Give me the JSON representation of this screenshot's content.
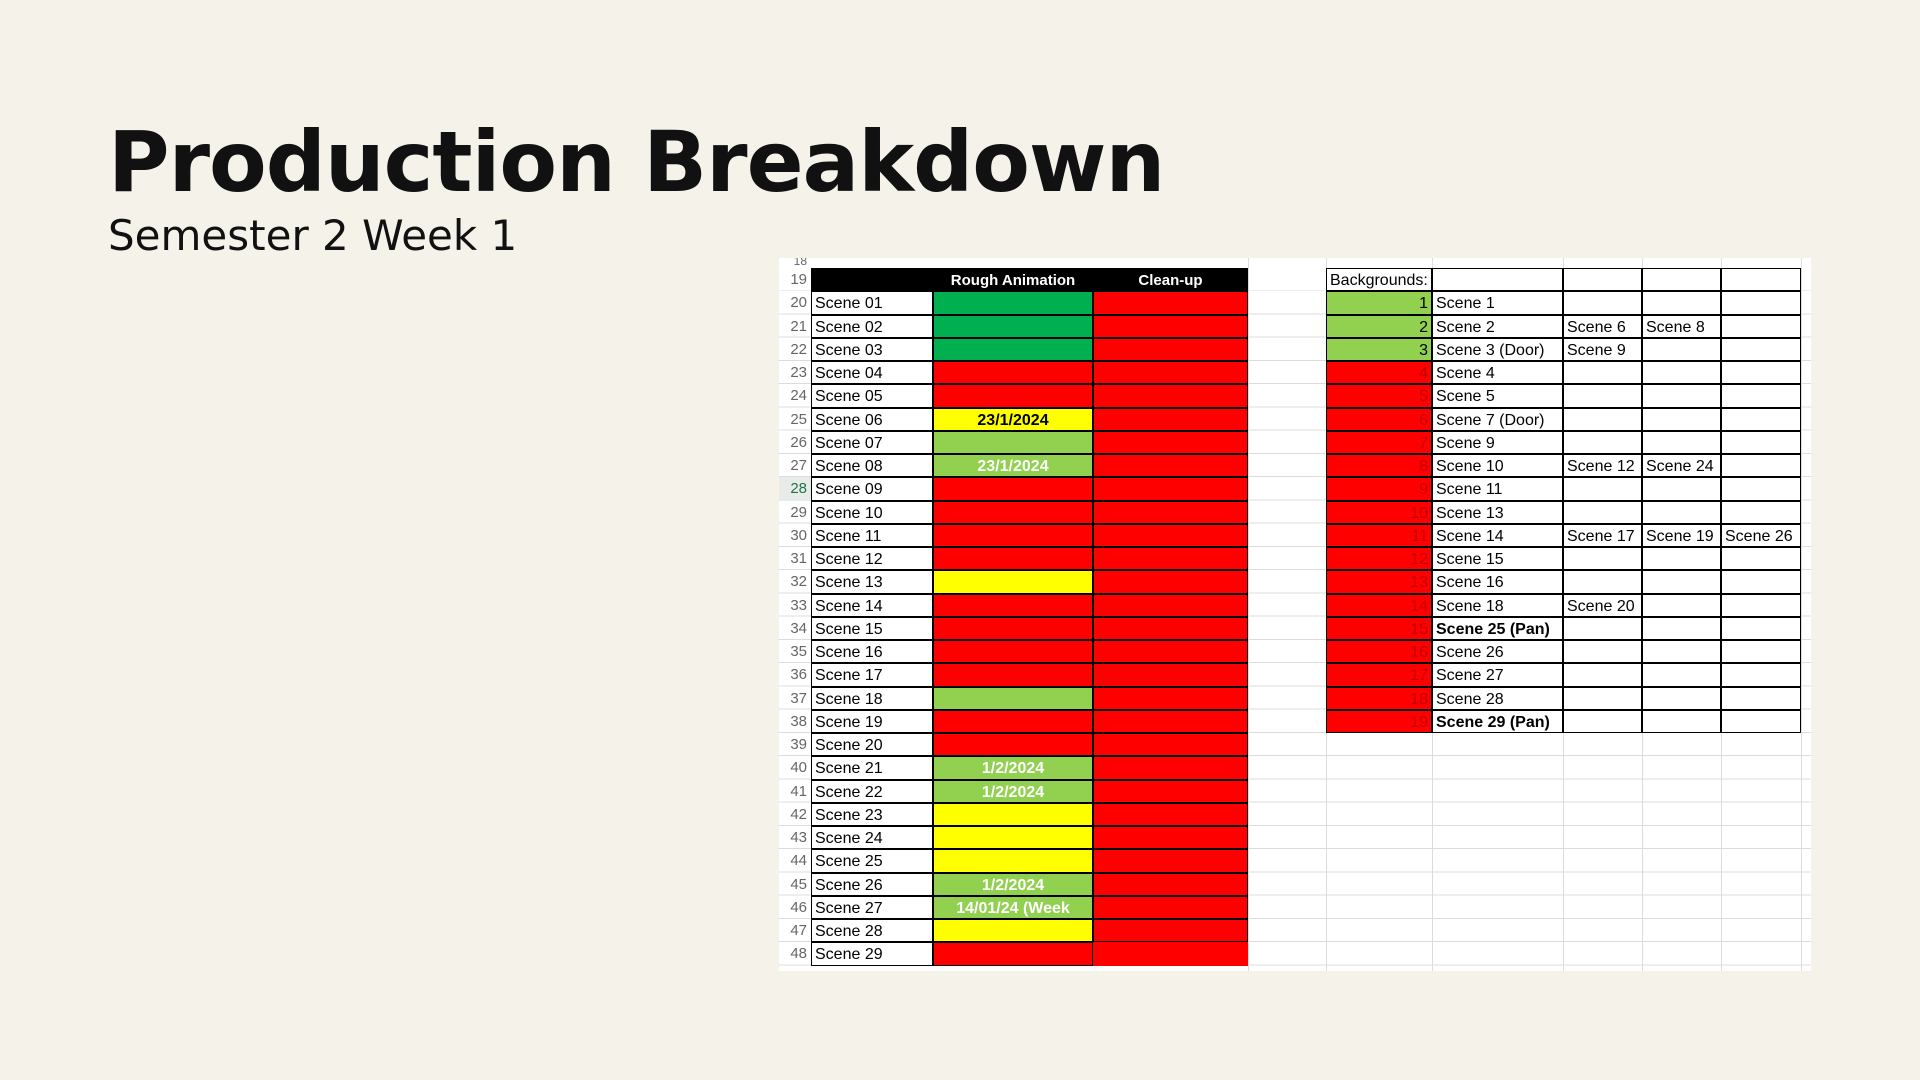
{
  "slide": {
    "title": "Production Breakdown",
    "subtitle": "Semester 2 Week 1"
  },
  "colors": {
    "dark_green": "#00b050",
    "light_green": "#92d050",
    "yellow": "#ffff00",
    "red": "#ff0000",
    "header_black": "#000000"
  },
  "sheet": {
    "first_row_partial": "18",
    "header_row": "19",
    "headers": {
      "rough": "Rough Animation",
      "cleanup": "Clean-up",
      "backgrounds": "Backgrounds:"
    },
    "active_row": "28",
    "scenes": [
      {
        "row": "20",
        "name": "Scene 01",
        "rough": "",
        "rough_color": "dark_green",
        "rough_text_color": "black",
        "cleanup_color": "red"
      },
      {
        "row": "21",
        "name": "Scene 02",
        "rough": "",
        "rough_color": "dark_green",
        "rough_text_color": "black",
        "cleanup_color": "red"
      },
      {
        "row": "22",
        "name": "Scene 03",
        "rough": "",
        "rough_color": "dark_green",
        "rough_text_color": "black",
        "cleanup_color": "red"
      },
      {
        "row": "23",
        "name": "Scene 04",
        "rough": "",
        "rough_color": "red",
        "rough_text_color": "black",
        "cleanup_color": "red"
      },
      {
        "row": "24",
        "name": "Scene 05",
        "rough": "",
        "rough_color": "red",
        "rough_text_color": "black",
        "cleanup_color": "red"
      },
      {
        "row": "25",
        "name": "Scene 06",
        "rough": "23/1/2024",
        "rough_color": "yellow",
        "rough_text_color": "black",
        "cleanup_color": "red"
      },
      {
        "row": "26",
        "name": "Scene 07",
        "rough": "",
        "rough_color": "light_green",
        "rough_text_color": "black",
        "cleanup_color": "red"
      },
      {
        "row": "27",
        "name": "Scene 08",
        "rough": "23/1/2024",
        "rough_color": "light_green",
        "rough_text_color": "white",
        "cleanup_color": "red"
      },
      {
        "row": "28",
        "name": "Scene 09",
        "rough": "",
        "rough_color": "red",
        "rough_text_color": "black",
        "cleanup_color": "red"
      },
      {
        "row": "29",
        "name": "Scene 10",
        "rough": "",
        "rough_color": "red",
        "rough_text_color": "black",
        "cleanup_color": "red"
      },
      {
        "row": "30",
        "name": "Scene 11",
        "rough": "",
        "rough_color": "red",
        "rough_text_color": "black",
        "cleanup_color": "red"
      },
      {
        "row": "31",
        "name": "Scene 12",
        "rough": "",
        "rough_color": "red",
        "rough_text_color": "black",
        "cleanup_color": "red"
      },
      {
        "row": "32",
        "name": "Scene 13",
        "rough": "",
        "rough_color": "yellow",
        "rough_text_color": "black",
        "cleanup_color": "red"
      },
      {
        "row": "33",
        "name": "Scene 14",
        "rough": "",
        "rough_color": "red",
        "rough_text_color": "black",
        "cleanup_color": "red"
      },
      {
        "row": "34",
        "name": "Scene 15",
        "rough": "",
        "rough_color": "red",
        "rough_text_color": "black",
        "cleanup_color": "red"
      },
      {
        "row": "35",
        "name": "Scene 16",
        "rough": "",
        "rough_color": "red",
        "rough_text_color": "black",
        "cleanup_color": "red"
      },
      {
        "row": "36",
        "name": "Scene 17",
        "rough": "",
        "rough_color": "red",
        "rough_text_color": "black",
        "cleanup_color": "red"
      },
      {
        "row": "37",
        "name": "Scene 18",
        "rough": "",
        "rough_color": "light_green",
        "rough_text_color": "black",
        "cleanup_color": "red"
      },
      {
        "row": "38",
        "name": "Scene 19",
        "rough": "",
        "rough_color": "red",
        "rough_text_color": "black",
        "cleanup_color": "red"
      },
      {
        "row": "39",
        "name": "Scene 20",
        "rough": "",
        "rough_color": "red",
        "rough_text_color": "black",
        "cleanup_color": "red"
      },
      {
        "row": "40",
        "name": "Scene 21",
        "rough": "1/2/2024",
        "rough_color": "light_green",
        "rough_text_color": "white",
        "cleanup_color": "red"
      },
      {
        "row": "41",
        "name": "Scene 22",
        "rough": "1/2/2024",
        "rough_color": "light_green",
        "rough_text_color": "white",
        "cleanup_color": "red"
      },
      {
        "row": "42",
        "name": "Scene 23",
        "rough": "",
        "rough_color": "yellow",
        "rough_text_color": "black",
        "cleanup_color": "red"
      },
      {
        "row": "43",
        "name": "Scene 24",
        "rough": "",
        "rough_color": "yellow",
        "rough_text_color": "black",
        "cleanup_color": "red"
      },
      {
        "row": "44",
        "name": "Scene 25",
        "rough": "",
        "rough_color": "yellow",
        "rough_text_color": "black",
        "cleanup_color": "red"
      },
      {
        "row": "45",
        "name": "Scene 26",
        "rough": "1/2/2024",
        "rough_color": "light_green",
        "rough_text_color": "white",
        "cleanup_color": "red"
      },
      {
        "row": "46",
        "name": "Scene 27",
        "rough": "14/01/24 (Week",
        "rough_color": "light_green",
        "rough_text_color": "white",
        "cleanup_color": "red"
      },
      {
        "row": "47",
        "name": "Scene 28",
        "rough": "",
        "rough_color": "yellow",
        "rough_text_color": "black",
        "cleanup_color": "red"
      },
      {
        "row": "48",
        "name": "Scene 29",
        "rough": "",
        "rough_color": "red",
        "rough_text_color": "black",
        "cleanup_color": "red"
      }
    ],
    "backgrounds": [
      {
        "num": "1",
        "color": "light_green",
        "scenes": [
          "Scene 1",
          "",
          "",
          ""
        ],
        "bold": false
      },
      {
        "num": "2",
        "color": "light_green",
        "scenes": [
          "Scene 2",
          "Scene 6",
          "Scene 8",
          ""
        ],
        "bold": false
      },
      {
        "num": "3",
        "color": "light_green",
        "scenes": [
          "Scene 3 (Door)",
          "Scene 9",
          "",
          ""
        ],
        "bold": false
      },
      {
        "num": "4",
        "color": "red",
        "scenes": [
          "Scene 4",
          "",
          "",
          ""
        ],
        "bold": false
      },
      {
        "num": "5",
        "color": "red",
        "scenes": [
          "Scene 5",
          "",
          "",
          ""
        ],
        "bold": false
      },
      {
        "num": "6",
        "color": "red",
        "scenes": [
          "Scene 7 (Door)",
          "",
          "",
          ""
        ],
        "bold": false
      },
      {
        "num": "7",
        "color": "red",
        "scenes": [
          "Scene 9",
          "",
          "",
          ""
        ],
        "bold": false
      },
      {
        "num": "8",
        "color": "red",
        "scenes": [
          "Scene 10",
          "Scene 12",
          "Scene 24",
          ""
        ],
        "bold": false
      },
      {
        "num": "9",
        "color": "red",
        "scenes": [
          "Scene 11",
          "",
          "",
          ""
        ],
        "bold": false
      },
      {
        "num": "10",
        "color": "red",
        "scenes": [
          "Scene 13",
          "",
          "",
          ""
        ],
        "bold": false
      },
      {
        "num": "11",
        "color": "red",
        "scenes": [
          "Scene 14",
          "Scene 17",
          "Scene 19",
          "Scene 26"
        ],
        "bold": false
      },
      {
        "num": "12",
        "color": "red",
        "scenes": [
          "Scene 15",
          "",
          "",
          ""
        ],
        "bold": false
      },
      {
        "num": "13",
        "color": "red",
        "scenes": [
          "Scene 16",
          "",
          "",
          ""
        ],
        "bold": false
      },
      {
        "num": "14",
        "color": "red",
        "scenes": [
          "Scene 18",
          "Scene 20",
          "",
          ""
        ],
        "bold": false
      },
      {
        "num": "15",
        "color": "red",
        "scenes": [
          "Scene 25 (Pan)",
          "",
          "",
          ""
        ],
        "bold": true
      },
      {
        "num": "16",
        "color": "red",
        "scenes": [
          "Scene 26",
          "",
          "",
          ""
        ],
        "bold": false
      },
      {
        "num": "17",
        "color": "red",
        "scenes": [
          "Scene 27",
          "",
          "",
          ""
        ],
        "bold": false
      },
      {
        "num": "18",
        "color": "red",
        "scenes": [
          "Scene 28",
          "",
          "",
          ""
        ],
        "bold": false
      },
      {
        "num": "19",
        "color": "red",
        "scenes": [
          "Scene 29 (Pan)",
          "",
          "",
          ""
        ],
        "bold": true
      }
    ]
  }
}
